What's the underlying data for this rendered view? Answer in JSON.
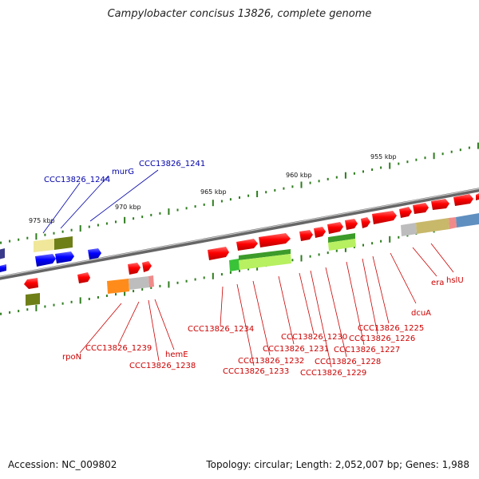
{
  "title": "Campylobacter concisus 13826, complete genome",
  "footer": {
    "accession": "Accession: NC_009802",
    "summary": "Topology: circular; Length: 2,052,007 bp; Genes: 1,988"
  },
  "colors": {
    "backbone": "#777777",
    "ticks": "#2e7d1e",
    "gene_red": "#ee0000",
    "gene_blue": "#0000ee",
    "label_red": "#cc0000",
    "label_blue": "#0000aa"
  },
  "scale_labels": [
    "955 kbp",
    "960 kbp",
    "965 kbp",
    "970 kbp",
    "975 kbp"
  ],
  "gene_labels_blue": [
    "CCC13826_1244",
    "murG",
    "CCC13826_1241"
  ],
  "gene_labels_red": [
    "rpoN",
    "CCC13826_1239",
    "CCC13826_1238",
    "hemE",
    "CCC13826_1234",
    "CCC13826_1233",
    "CCC13826_1232",
    "CCC13826_1231",
    "CCC13826_1230",
    "CCC13826_1229",
    "CCC13826_1228",
    "CCC13826_1227",
    "CCC13826_1226",
    "CCC13826_1225",
    "dcuA",
    "era",
    "hslU"
  ]
}
